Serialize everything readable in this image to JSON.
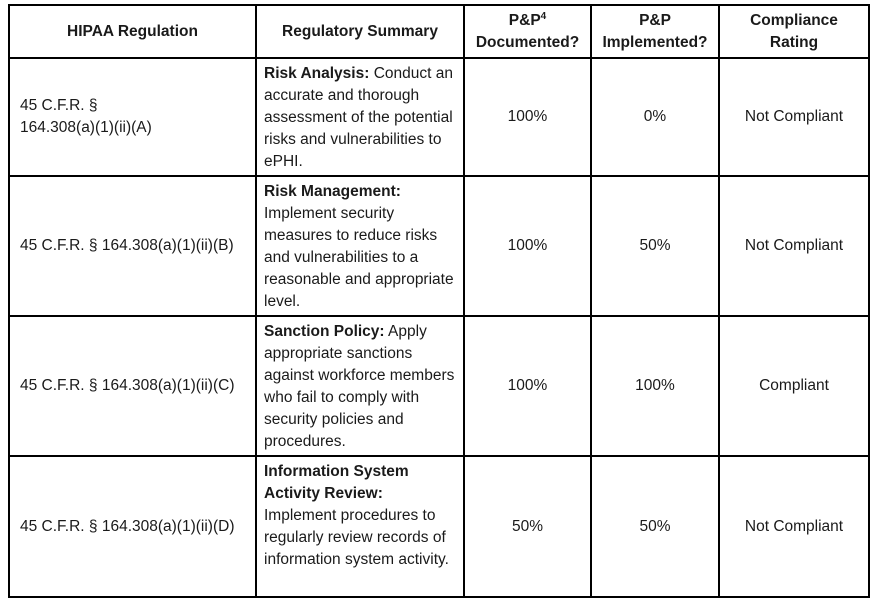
{
  "colors": {
    "background": "#ffffff",
    "border": "#000000",
    "text": "#1a1a1a"
  },
  "table": {
    "headers": [
      {
        "label": "HIPAA Regulation"
      },
      {
        "label": "Regulatory Summary"
      },
      {
        "line1": "P&P",
        "sup": "4",
        "line2": "Documented?"
      },
      {
        "line1": "P&P",
        "line2": "Implemented?"
      },
      {
        "line1": "Compliance",
        "line2": "Rating"
      }
    ],
    "rows": [
      {
        "regulation": "45 C.F.R. §\n164.308(a)(1)(ii)(A)",
        "summary_term": "Risk Analysis:",
        "summary_rest": "Conduct an accurate and thorough assessment of the potential risks and vulnerabilities to ePHI.",
        "pp_documented": "100%",
        "pp_implemented": "0%",
        "compliance_rating": "Not Compliant"
      },
      {
        "regulation": "45 C.F.R. § 164.308(a)(1)(ii)(B)",
        "summary_term": "Risk Management:",
        "summary_rest": "Implement security measures to reduce risks and vulnerabilities to a reasonable and appropriate level.",
        "pp_documented": "100%",
        "pp_implemented": "50%",
        "compliance_rating": "Not Compliant"
      },
      {
        "regulation": "45 C.F.R. § 164.308(a)(1)(ii)(C)",
        "summary_term": "Sanction Policy:",
        "summary_rest": "Apply appropriate sanctions against workforce members who fail to comply with security policies and procedures.",
        "pp_documented": "100%",
        "pp_implemented": "100%",
        "compliance_rating": "Compliant"
      },
      {
        "regulation": "45 C.F.R. § 164.308(a)(1)(ii)(D)",
        "summary_term": "Information System Activity Review:",
        "summary_rest": "Implement procedures to regularly review records of information system activity.",
        "pp_documented": "50%",
        "pp_implemented": "50%",
        "compliance_rating": "Not Compliant"
      }
    ]
  }
}
